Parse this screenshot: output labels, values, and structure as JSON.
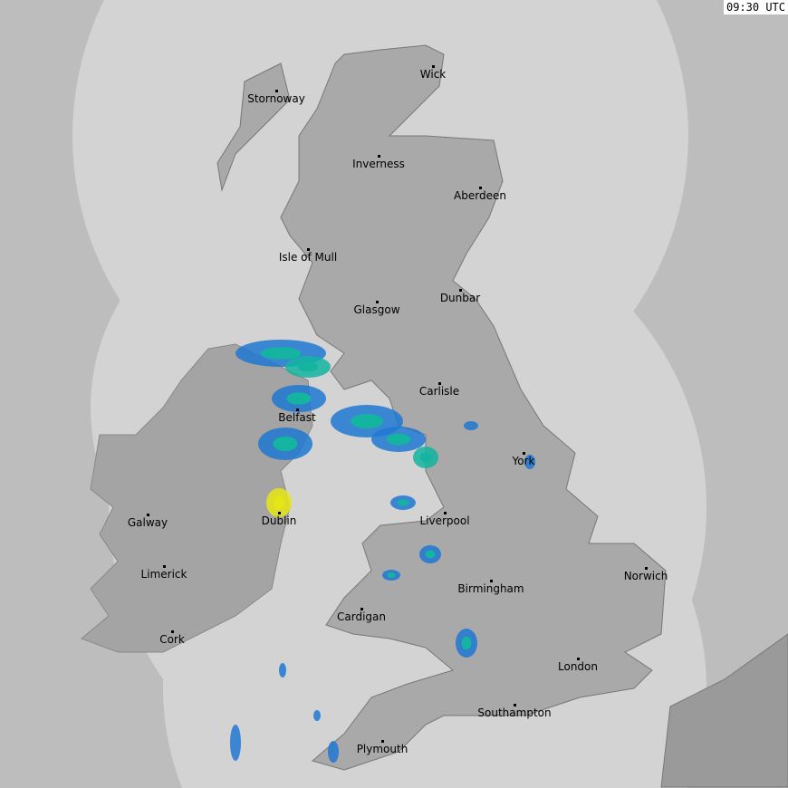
{
  "timestamp": "09:30 UTC",
  "colors": {
    "outside_coverage": "#bdbdbd",
    "coverage": "#d3d3d3",
    "land": "#a9a9a9",
    "rain_light": "#1e78d2",
    "rain_medium": "#14b4a0",
    "rain_heavy": "#e6e614"
  },
  "cities": [
    {
      "name": "Stornoway"
    },
    {
      "name": "Wick"
    },
    {
      "name": "Inverness"
    },
    {
      "name": "Aberdeen"
    },
    {
      "name": "Isle of Mull"
    },
    {
      "name": "Glasgow"
    },
    {
      "name": "Dunbar"
    },
    {
      "name": "Carlisle"
    },
    {
      "name": "Belfast"
    },
    {
      "name": "York"
    },
    {
      "name": "Galway"
    },
    {
      "name": "Dublin"
    },
    {
      "name": "Liverpool"
    },
    {
      "name": "Limerick"
    },
    {
      "name": "Norwich"
    },
    {
      "name": "Birmingham"
    },
    {
      "name": "Cardigan"
    },
    {
      "name": "Cork"
    },
    {
      "name": "London"
    },
    {
      "name": "Southampton"
    },
    {
      "name": "Plymouth"
    }
  ]
}
